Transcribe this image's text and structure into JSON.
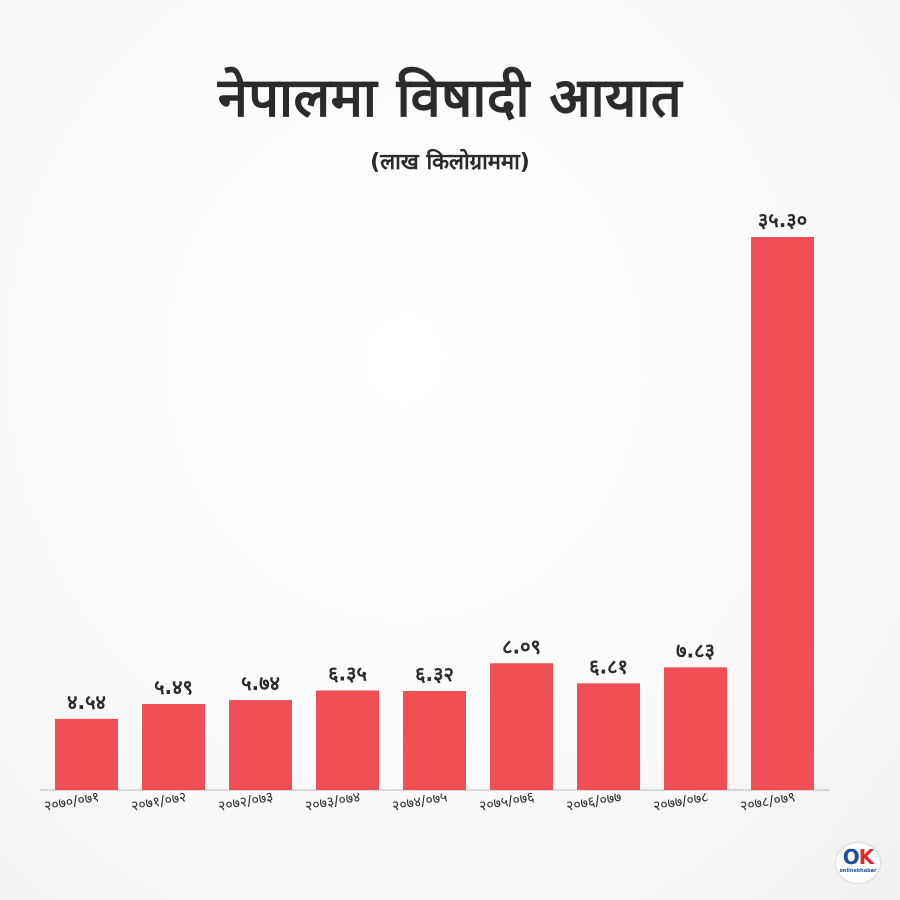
{
  "header": {
    "title": "नेपालमा विषादी आयात",
    "subtitle": "(लाख किलोग्राममा)"
  },
  "logo": {
    "mark_o": "O",
    "mark_k": "K",
    "brand": "onlinekhabar"
  },
  "colors": {
    "bar": "#f05055",
    "text": "#2b2b2b",
    "baseline": "#b8b8b8"
  },
  "chart_data": {
    "type": "bar",
    "title": "नेपालमा विषादी आयात",
    "subtitle": "(लाख किलोग्राममा)",
    "xlabel": "",
    "ylabel": "",
    "ylim": [
      0,
      36
    ],
    "grid": false,
    "categories": [
      "२०७०/०७१",
      "२०७१/०७२",
      "२०७२/०७३",
      "२०७३/०७४",
      "२०७४/०७५",
      "२०७५/०७६",
      "२०७६/०७७",
      "२०७७/०७८",
      "२०७८/०७९"
    ],
    "values": [
      4.54,
      5.49,
      5.74,
      6.35,
      6.32,
      8.09,
      6.81,
      7.83,
      35.3
    ],
    "value_labels": [
      "४.५४",
      "५.४९",
      "५.७४",
      "६.३५",
      "६.३२",
      "८.०९",
      "६.८१",
      "७.८३",
      "३५.३०"
    ]
  }
}
